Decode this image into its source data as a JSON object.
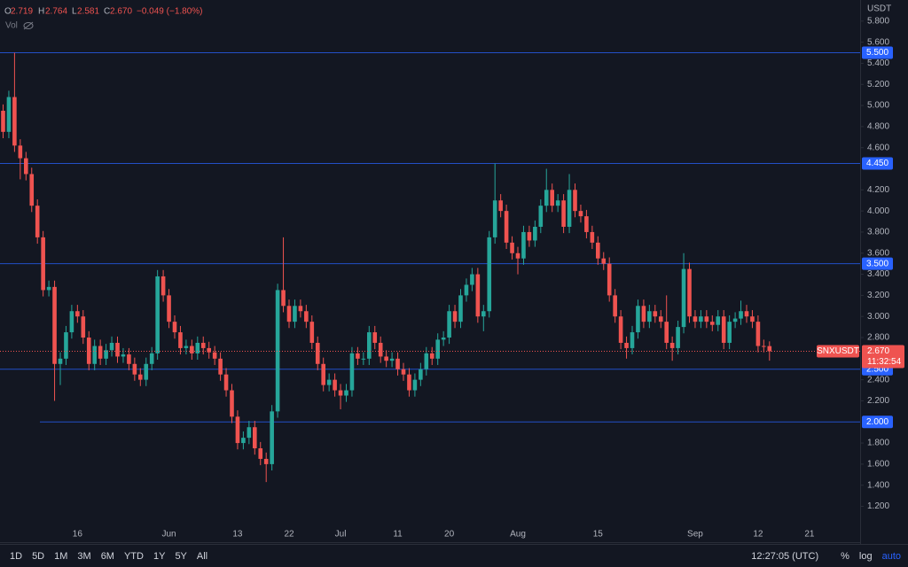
{
  "chart_data": {
    "type": "candlestick",
    "symbol": "SNXUSDT",
    "currency": "USDT",
    "volume_label": "Vol",
    "header": {
      "o_label": "O",
      "open": "2.719",
      "h_label": "H",
      "high": "2.764",
      "l_label": "L",
      "low": "2.581",
      "c_label": "C",
      "close": "2.670",
      "change": "−0.049 (−1.80%)"
    },
    "up_color": "#26a69a",
    "down_color": "#ef5350",
    "level_color": "#2962ff",
    "categories": [
      null,
      null,
      null,
      null,
      null,
      null,
      null,
      null,
      null,
      null,
      null,
      null,
      null,
      "16",
      null,
      null,
      null,
      null,
      null,
      null,
      null,
      null,
      null,
      null,
      null,
      null,
      null,
      null,
      null,
      "Jun",
      null,
      null,
      null,
      null,
      null,
      null,
      null,
      null,
      null,
      null,
      null,
      "13",
      null,
      null,
      null,
      null,
      null,
      null,
      null,
      null,
      "22",
      null,
      null,
      null,
      null,
      null,
      null,
      null,
      null,
      "Jul",
      null,
      null,
      null,
      null,
      null,
      null,
      null,
      null,
      null,
      "11",
      null,
      null,
      null,
      null,
      null,
      null,
      null,
      null,
      "20",
      null,
      null,
      null,
      null,
      null,
      null,
      null,
      null,
      null,
      null,
      null,
      "Aug",
      null,
      null,
      null,
      null,
      null,
      null,
      null,
      null,
      null,
      null,
      null,
      null,
      null,
      "15",
      null,
      null,
      null,
      null,
      null,
      null,
      null,
      null,
      null,
      null,
      null,
      null,
      null,
      null,
      null,
      null,
      "Sep",
      null,
      null,
      null,
      null,
      null,
      null,
      null,
      null,
      null,
      null,
      "12",
      null,
      null,
      null,
      null,
      null,
      null,
      null,
      null,
      "21"
    ],
    "open": [
      4.95,
      4.75,
      5.08,
      4.62,
      4.5,
      4.35,
      4.05,
      3.75,
      3.25,
      3.28,
      2.55,
      2.6,
      2.85,
      3.05,
      3.0,
      2.8,
      2.55,
      2.72,
      2.6,
      2.68,
      2.75,
      2.62,
      2.64,
      2.55,
      2.45,
      2.4,
      2.55,
      2.65,
      3.38,
      3.2,
      2.95,
      2.85,
      2.7,
      2.72,
      2.65,
      2.75,
      2.7,
      2.66,
      2.6,
      2.45,
      2.3,
      2.05,
      1.8,
      1.85,
      1.95,
      1.75,
      1.65,
      1.6,
      2.1,
      3.25,
      3.1,
      2.95,
      3.1,
      3.05,
      2.95,
      2.75,
      2.55,
      2.35,
      2.4,
      2.3,
      2.25,
      2.3,
      2.65,
      2.6,
      2.6,
      2.85,
      2.75,
      2.62,
      2.58,
      2.6,
      2.5,
      2.45,
      2.3,
      2.4,
      2.5,
      2.65,
      2.6,
      2.78,
      2.8,
      3.05,
      2.95,
      3.2,
      3.3,
      3.4,
      3.0,
      3.05,
      3.75,
      4.1,
      4.0,
      3.7,
      3.6,
      3.55,
      3.8,
      3.72,
      3.85,
      4.05,
      4.2,
      4.05,
      4.1,
      3.85,
      4.2,
      4.0,
      3.95,
      3.8,
      3.7,
      3.55,
      3.5,
      3.2,
      3.0,
      2.75,
      2.7,
      2.85,
      3.1,
      2.95,
      3.05,
      3.0,
      2.95,
      2.75,
      2.7,
      2.9,
      3.45,
      3.0,
      2.95,
      3.0,
      2.95,
      2.92,
      3.0,
      2.75,
      2.95,
      2.98,
      3.05,
      3.0,
      2.95,
      2.72,
      2.719,
      null,
      null,
      null,
      null,
      null,
      null,
      null
    ],
    "high": [
      5.01,
      5.14,
      5.5,
      4.68,
      4.56,
      4.41,
      4.11,
      3.81,
      3.34,
      3.34,
      2.66,
      2.91,
      3.11,
      3.11,
      3.06,
      2.86,
      2.78,
      2.78,
      2.74,
      2.81,
      2.81,
      2.7,
      2.7,
      2.61,
      2.51,
      2.61,
      2.71,
      3.44,
      3.44,
      3.26,
      3.01,
      2.91,
      2.78,
      2.78,
      2.81,
      2.81,
      2.76,
      2.72,
      2.66,
      2.51,
      2.36,
      2.11,
      1.91,
      2.01,
      2.01,
      1.81,
      1.71,
      2.16,
      3.31,
      3.75,
      3.16,
      3.16,
      3.16,
      3.11,
      3.01,
      2.81,
      2.61,
      2.46,
      2.46,
      2.36,
      2.36,
      2.71,
      2.71,
      2.66,
      2.91,
      2.91,
      2.81,
      2.68,
      2.66,
      2.66,
      2.56,
      2.51,
      2.46,
      2.56,
      2.71,
      2.71,
      2.84,
      2.86,
      3.11,
      3.11,
      3.26,
      3.36,
      3.46,
      3.46,
      3.11,
      3.81,
      4.45,
      4.16,
      4.06,
      3.76,
      3.66,
      3.86,
      3.86,
      3.91,
      4.11,
      4.4,
      4.26,
      4.16,
      4.16,
      4.35,
      4.26,
      4.06,
      4.01,
      3.86,
      3.76,
      3.61,
      3.56,
      3.26,
      3.06,
      2.81,
      2.91,
      3.16,
      3.16,
      3.11,
      3.11,
      3.06,
      3.2,
      2.81,
      2.96,
      3.6,
      3.51,
      3.06,
      3.06,
      3.06,
      3.01,
      3.06,
      3.06,
      3.01,
      3.04,
      3.15,
      3.11,
      3.06,
      3.01,
      2.78,
      2.764,
      null,
      null,
      null,
      null,
      null,
      null,
      null
    ],
    "low": [
      4.69,
      4.69,
      4.56,
      4.3,
      4.29,
      3.99,
      3.69,
      3.19,
      3.19,
      2.2,
      2.35,
      2.54,
      2.79,
      2.94,
      2.74,
      2.49,
      2.49,
      2.54,
      2.54,
      2.62,
      2.56,
      2.56,
      2.49,
      2.39,
      2.34,
      2.34,
      2.49,
      2.59,
      3.14,
      2.89,
      2.79,
      2.64,
      2.64,
      2.59,
      2.59,
      2.64,
      2.6,
      2.54,
      2.39,
      2.24,
      1.99,
      1.74,
      1.74,
      1.79,
      1.69,
      1.59,
      1.43,
      1.54,
      2.04,
      3.04,
      2.89,
      2.89,
      2.99,
      2.89,
      2.69,
      2.49,
      2.29,
      2.29,
      2.24,
      2.12,
      2.19,
      2.24,
      2.54,
      2.54,
      2.54,
      2.69,
      2.56,
      2.52,
      2.52,
      2.44,
      2.39,
      2.24,
      2.24,
      2.34,
      2.44,
      2.54,
      2.54,
      2.72,
      2.74,
      2.89,
      2.89,
      3.14,
      3.24,
      2.94,
      2.86,
      2.99,
      3.69,
      3.94,
      3.64,
      3.54,
      3.4,
      3.49,
      3.66,
      3.66,
      3.79,
      3.99,
      3.99,
      3.99,
      3.79,
      3.79,
      3.94,
      3.89,
      3.74,
      3.64,
      3.49,
      3.44,
      3.14,
      2.94,
      2.69,
      2.6,
      2.64,
      2.79,
      2.89,
      2.89,
      2.94,
      2.89,
      2.69,
      2.58,
      2.64,
      2.84,
      2.94,
      2.89,
      2.89,
      2.89,
      2.86,
      2.86,
      2.69,
      2.69,
      2.89,
      2.92,
      2.94,
      2.89,
      2.66,
      2.66,
      2.581,
      null,
      null,
      null,
      null,
      null,
      null,
      null
    ],
    "close": [
      4.75,
      5.08,
      4.62,
      4.5,
      4.35,
      4.05,
      3.75,
      3.25,
      3.28,
      2.55,
      2.6,
      2.85,
      3.05,
      3.0,
      2.8,
      2.55,
      2.72,
      2.6,
      2.68,
      2.75,
      2.62,
      2.64,
      2.55,
      2.45,
      2.4,
      2.55,
      2.65,
      3.38,
      3.2,
      2.95,
      2.85,
      2.7,
      2.72,
      2.65,
      2.75,
      2.7,
      2.66,
      2.6,
      2.45,
      2.3,
      2.05,
      1.8,
      1.85,
      1.95,
      1.75,
      1.65,
      1.6,
      2.1,
      3.25,
      3.1,
      2.95,
      3.1,
      3.05,
      2.95,
      2.75,
      2.55,
      2.35,
      2.4,
      2.3,
      2.25,
      2.3,
      2.65,
      2.6,
      2.6,
      2.85,
      2.75,
      2.62,
      2.58,
      2.6,
      2.5,
      2.45,
      2.3,
      2.4,
      2.5,
      2.65,
      2.6,
      2.78,
      2.8,
      3.05,
      2.95,
      3.2,
      3.3,
      3.4,
      3.0,
      3.05,
      3.75,
      4.1,
      4.0,
      3.7,
      3.6,
      3.55,
      3.8,
      3.72,
      3.85,
      4.05,
      4.2,
      4.05,
      4.1,
      3.85,
      4.2,
      4.0,
      3.95,
      3.8,
      3.7,
      3.55,
      3.5,
      3.2,
      3.0,
      2.75,
      2.7,
      2.85,
      3.1,
      2.95,
      3.05,
      3.0,
      2.95,
      2.75,
      2.7,
      2.9,
      3.45,
      3.0,
      2.95,
      3.0,
      2.95,
      2.92,
      3.0,
      2.75,
      2.95,
      2.98,
      3.05,
      3.0,
      2.95,
      2.72,
      2.719,
      2.67,
      null,
      null,
      null,
      null,
      null,
      null,
      null
    ],
    "ylim": [
      0.86,
      6.0
    ],
    "yticks": [
      {
        "value": 1.2,
        "label": "1.200"
      },
      {
        "value": 1.4,
        "label": "1.400"
      },
      {
        "value": 1.6,
        "label": "1.600"
      },
      {
        "value": 1.8,
        "label": "1.800"
      },
      {
        "value": 2.2,
        "label": "2.200"
      },
      {
        "value": 2.4,
        "label": "2.400"
      },
      {
        "value": 2.8,
        "label": "2.800"
      },
      {
        "value": 3.0,
        "label": "3.000"
      },
      {
        "value": 3.2,
        "label": "3.200"
      },
      {
        "value": 3.4,
        "label": "3.400"
      },
      {
        "value": 3.6,
        "label": "3.600"
      },
      {
        "value": 3.8,
        "label": "3.800"
      },
      {
        "value": 4.0,
        "label": "4.000"
      },
      {
        "value": 4.2,
        "label": "4.200"
      },
      {
        "value": 4.6,
        "label": "4.600"
      },
      {
        "value": 4.8,
        "label": "4.800"
      },
      {
        "value": 5.0,
        "label": "5.000"
      },
      {
        "value": 5.2,
        "label": "5.200"
      },
      {
        "value": 5.4,
        "label": "5.400"
      },
      {
        "value": 5.6,
        "label": "5.600"
      },
      {
        "value": 5.8,
        "label": "5.800"
      }
    ],
    "levels": [
      {
        "value": 5.5,
        "label": "5.500"
      },
      {
        "value": 4.45,
        "label": "4.450"
      },
      {
        "value": 3.5,
        "label": "3.500"
      },
      {
        "value": 2.5,
        "label": "2.500"
      },
      {
        "value": 2.0,
        "label": "2.000"
      }
    ],
    "last_price": {
      "value": 2.67,
      "label": "2.670"
    },
    "countdown": "11:32:54"
  },
  "toolbar": {
    "ranges": [
      "1D",
      "5D",
      "1M",
      "3M",
      "6M",
      "YTD",
      "1Y",
      "5Y",
      "All"
    ],
    "time": "12:27:05 (UTC)",
    "percent": "%",
    "log": "log",
    "auto": "auto"
  }
}
